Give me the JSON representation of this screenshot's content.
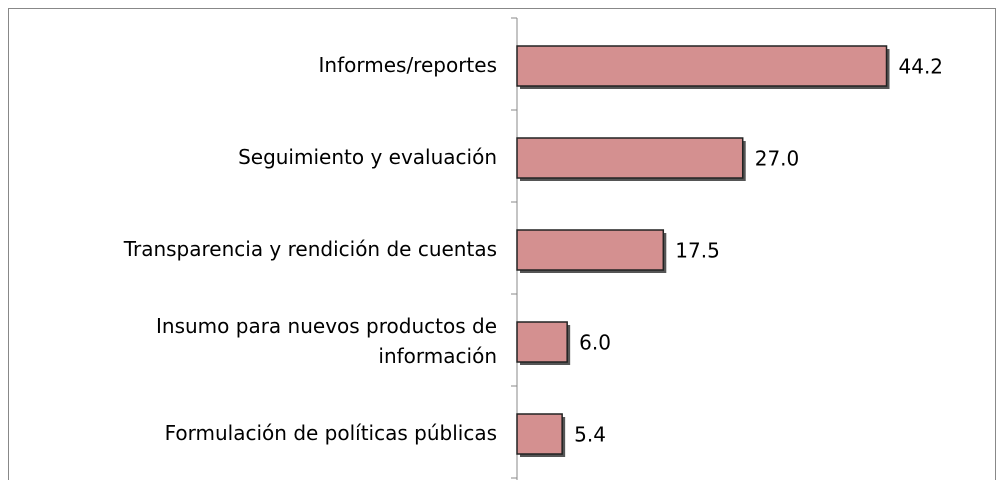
{
  "chart_data": {
    "type": "hbar",
    "categories": [
      "Informes/reportes",
      "Seguimiento y evaluación",
      "Transparencia y rendición de cuentas",
      "Insumo para nuevos productos de información",
      "Formulación de políticas públicas"
    ],
    "values": [
      44.2,
      27.0,
      17.5,
      6.0,
      5.4
    ],
    "value_labels": [
      "44.2",
      "27.0",
      "17.5",
      "6.0",
      "5.4"
    ],
    "color": "#d49090",
    "xlim": [
      0,
      50
    ]
  }
}
